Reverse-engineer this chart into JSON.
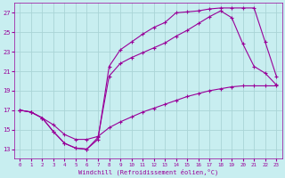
{
  "xlabel": "Windchill (Refroidissement éolien,°C)",
  "background_color": "#c8eef0",
  "line_color": "#990099",
  "grid_color": "#aad4d6",
  "ylim": [
    12.0,
    28.0
  ],
  "xlim": [
    -0.5,
    23.5
  ],
  "yticks": [
    13,
    15,
    17,
    19,
    21,
    23,
    25,
    27
  ],
  "xticks": [
    0,
    1,
    2,
    3,
    4,
    5,
    6,
    7,
    8,
    9,
    10,
    11,
    12,
    13,
    14,
    15,
    16,
    17,
    18,
    19,
    20,
    21,
    22,
    23
  ],
  "series": [
    {
      "x": [
        0,
        1,
        2,
        3,
        4,
        5,
        6,
        7,
        8,
        9,
        10,
        11,
        12,
        13,
        14,
        15,
        16,
        17,
        18,
        19,
        20,
        21,
        22,
        23
      ],
      "y": [
        17.0,
        16.8,
        16.2,
        15.5,
        14.5,
        14.0,
        14.0,
        14.3,
        15.2,
        15.8,
        16.3,
        16.8,
        17.2,
        17.6,
        18.0,
        18.4,
        18.7,
        19.0,
        19.2,
        19.4,
        19.5,
        19.5,
        19.5,
        19.5
      ]
    },
    {
      "x": [
        0,
        1,
        2,
        3,
        4,
        5,
        6,
        7,
        8,
        9,
        10,
        11,
        12,
        13,
        14,
        15,
        16,
        17,
        18,
        19,
        20,
        21,
        22,
        23
      ],
      "y": [
        17.0,
        16.8,
        16.2,
        14.8,
        13.6,
        13.1,
        13.0,
        14.2,
        20.5,
        21.8,
        22.4,
        22.9,
        23.4,
        23.9,
        24.6,
        25.2,
        25.9,
        26.6,
        27.2,
        26.5,
        23.8,
        21.5,
        20.8,
        19.6
      ]
    },
    {
      "x": [
        0,
        1,
        2,
        3,
        4,
        5,
        6,
        7,
        8,
        9,
        10,
        11,
        12,
        13,
        14,
        15,
        16,
        17,
        18,
        19,
        20,
        21,
        22,
        23
      ],
      "y": [
        17.0,
        16.8,
        16.2,
        14.8,
        13.6,
        13.1,
        13.0,
        14.0,
        21.5,
        23.2,
        24.0,
        24.8,
        25.5,
        26.0,
        27.0,
        27.1,
        27.2,
        27.4,
        27.5,
        27.5,
        27.5,
        27.5,
        24.0,
        20.5
      ]
    }
  ]
}
